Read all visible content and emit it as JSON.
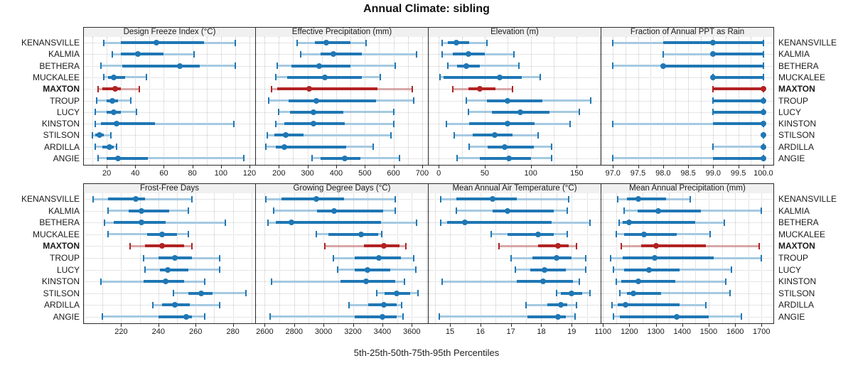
{
  "title": "Annual Climate: sibling",
  "caption": "5th-25th-50th-75th-95th Percentiles",
  "colors": {
    "normal": "#1f77b4",
    "normal_light": "#a5c9e1",
    "highlight": "#b22222",
    "highlight_light": "#d8a7a7",
    "header_bg": "#f0f0f0",
    "panel_border": "#2b2b2b",
    "grid": "#c8c8c8"
  },
  "chart_data": {
    "type": "dot-interval percentile trellis (5th-25th-50th-75th-95th)",
    "grid": "dotted minor+major verticals, dotted horizontal per category",
    "legend_position": "none (caption below)",
    "categories": [
      "KENANSVILLE",
      "KALMIA",
      "BETHERA",
      "MUCKALEE",
      "MAXTON",
      "TROUP",
      "LUCY",
      "KINSTON",
      "STILSON",
      "ARDILLA",
      "ANGIE"
    ],
    "highlight_category": "MAXTON",
    "percentiles": [
      "5th",
      "25th",
      "50th",
      "75th",
      "95th"
    ],
    "panels": [
      {
        "title": "Design Freeze Index (°C)",
        "xlim": [
          4,
          124
        ],
        "ticks": [
          20,
          40,
          60,
          80,
          100,
          120
        ],
        "tick_labels": [
          "20",
          "40",
          "60",
          "80",
          "100",
          "120"
        ],
        "values": [
          [
            18,
            30,
            55,
            88,
            110
          ],
          [
            24,
            30,
            42,
            60,
            81
          ],
          [
            16,
            31,
            71,
            85,
            110
          ],
          [
            18,
            21,
            25,
            33,
            48
          ],
          [
            14,
            17,
            26,
            30,
            43
          ],
          [
            13,
            20,
            24,
            28,
            37
          ],
          [
            12,
            20,
            25,
            30,
            41
          ],
          [
            12,
            16,
            27,
            54,
            109
          ],
          [
            10,
            12,
            15,
            18,
            23
          ],
          [
            12,
            17,
            22,
            25,
            27
          ],
          [
            14,
            20,
            28,
            49,
            116
          ]
        ]
      },
      {
        "title": "Effective Precipitation (mm)",
        "xlim": [
          120,
          720
        ],
        "ticks": [
          200,
          300,
          400,
          500,
          600,
          700
        ],
        "tick_labels": [
          "200",
          "300",
          "400",
          "500",
          "600",
          "700"
        ],
        "values": [
          [
            265,
            325,
            365,
            450,
            505
          ],
          [
            275,
            345,
            390,
            490,
            680
          ],
          [
            195,
            245,
            340,
            450,
            605
          ],
          [
            190,
            230,
            360,
            490,
            555
          ],
          [
            175,
            195,
            305,
            545,
            665
          ],
          [
            165,
            235,
            330,
            540,
            670
          ],
          [
            200,
            240,
            320,
            425,
            600
          ],
          [
            190,
            220,
            320,
            430,
            600
          ],
          [
            160,
            185,
            225,
            285,
            590
          ],
          [
            155,
            190,
            220,
            435,
            530
          ],
          [
            315,
            345,
            430,
            485,
            620
          ]
        ]
      },
      {
        "title": "Elevation (m)",
        "xlim": [
          -11,
          176
        ],
        "ticks": [
          0,
          50,
          100,
          150
        ],
        "tick_labels": [
          "0",
          "50",
          "100",
          "150"
        ],
        "values": [
          [
            4,
            10,
            19,
            33,
            52
          ],
          [
            4,
            15,
            32,
            50,
            82
          ],
          [
            10,
            20,
            30,
            45,
            87
          ],
          [
            1,
            5,
            66,
            90,
            110
          ],
          [
            15,
            32,
            45,
            62,
            80
          ],
          [
            30,
            52,
            75,
            113,
            165
          ],
          [
            32,
            58,
            89,
            120,
            153
          ],
          [
            8,
            33,
            75,
            104,
            143
          ],
          [
            17,
            37,
            61,
            80,
            108
          ],
          [
            33,
            53,
            72,
            103,
            123
          ],
          [
            20,
            45,
            76,
            100,
            123
          ]
        ]
      },
      {
        "title": "Fraction of Annual PPT as Rain",
        "xlim": [
          96.77,
          100.2
        ],
        "ticks": [
          97.0,
          97.5,
          98.0,
          98.5,
          99.0,
          99.5,
          100.0
        ],
        "tick_labels": [
          "97.0",
          "97.5",
          "98.0",
          "98.5",
          "99.0",
          "99.5",
          "100.0"
        ],
        "values": [
          [
            97,
            98,
            99,
            100,
            100
          ],
          [
            98,
            99,
            99,
            100,
            100
          ],
          [
            97,
            98,
            98,
            100,
            100
          ],
          [
            99,
            99,
            99,
            100,
            100
          ],
          [
            99,
            99,
            100,
            100,
            100
          ],
          [
            99,
            99,
            100,
            100,
            100
          ],
          [
            99,
            99,
            100,
            100,
            100
          ],
          [
            97,
            99,
            100,
            100,
            100
          ],
          [
            100,
            100,
            100,
            100,
            100
          ],
          [
            99,
            100,
            100,
            100,
            100
          ],
          [
            97,
            99,
            100,
            100,
            100
          ]
        ]
      },
      {
        "title": "Frost-Free Days",
        "xlim": [
          200,
          292
        ],
        "ticks": [
          220,
          240,
          260,
          280
        ],
        "tick_labels": [
          "220",
          "240",
          "260",
          "280"
        ],
        "values": [
          [
            205,
            213,
            228,
            233,
            258
          ],
          [
            213,
            224,
            231,
            246,
            256
          ],
          [
            211,
            216,
            231,
            244,
            276
          ],
          [
            213,
            234,
            242,
            250,
            256
          ],
          [
            225,
            233,
            242,
            254,
            258
          ],
          [
            232,
            240,
            249,
            258,
            273
          ],
          [
            233,
            241,
            245,
            256,
            273
          ],
          [
            209,
            232,
            244,
            254,
            265
          ],
          [
            248,
            256,
            263,
            269,
            287
          ],
          [
            237,
            242,
            249,
            257,
            273
          ],
          [
            210,
            240,
            255,
            258,
            265
          ]
        ]
      },
      {
        "title": "Growing Degree Days (°C)",
        "xlim": [
          2540,
          3710
        ],
        "ticks": [
          2600,
          2800,
          3000,
          3200,
          3400,
          3600
        ],
        "tick_labels": [
          "2600",
          "2800",
          "3000",
          "3200",
          "3400",
          "3600"
        ],
        "values": [
          [
            2610,
            2715,
            2950,
            3140,
            3490
          ],
          [
            2660,
            2955,
            3070,
            3405,
            3490
          ],
          [
            2620,
            2675,
            2780,
            3390,
            3635
          ],
          [
            2950,
            3035,
            3255,
            3370,
            3395
          ],
          [
            3010,
            3275,
            3410,
            3515,
            3560
          ],
          [
            3065,
            3210,
            3375,
            3525,
            3615
          ],
          [
            3095,
            3210,
            3300,
            3455,
            3630
          ],
          [
            2645,
            3115,
            3290,
            3490,
            3550
          ],
          [
            3360,
            3415,
            3495,
            3590,
            3640
          ],
          [
            3175,
            3305,
            3410,
            3495,
            3530
          ],
          [
            2635,
            3210,
            3400,
            3495,
            3540
          ]
        ]
      },
      {
        "title": "Mean Annual Air Temperature (°C)",
        "xlim": [
          14.3,
          19.95
        ],
        "ticks": [
          15,
          16,
          17,
          18,
          19
        ],
        "tick_labels": [
          "15",
          "16",
          "17",
          "18",
          "19"
        ],
        "values": [
          [
            14.7,
            15.2,
            16.4,
            17.2,
            18.9
          ],
          [
            15.2,
            16.4,
            16.9,
            18.4,
            18.85
          ],
          [
            14.7,
            14.9,
            15.5,
            18.35,
            19.6
          ],
          [
            16.35,
            16.9,
            17.9,
            18.4,
            18.85
          ],
          [
            16.6,
            17.9,
            18.55,
            18.9,
            19.15
          ],
          [
            17.0,
            17.7,
            18.5,
            19.0,
            19.45
          ],
          [
            17.15,
            17.65,
            18.1,
            18.8,
            19.45
          ],
          [
            14.75,
            17.2,
            18.05,
            19.05,
            19.25
          ],
          [
            18.5,
            18.65,
            19.0,
            19.35,
            19.6
          ],
          [
            17.5,
            18.2,
            18.65,
            18.85,
            19.15
          ],
          [
            14.65,
            17.55,
            18.55,
            18.8,
            19.1
          ]
        ]
      },
      {
        "title": "Mean Annual Precipitation (mm)",
        "xlim": [
          1094,
          1745
        ],
        "ticks": [
          1100,
          1200,
          1300,
          1400,
          1500,
          1600,
          1700
        ],
        "tick_labels": [
          "1100",
          "1200",
          "1300",
          "1400",
          "1500",
          "1600",
          "1700"
        ],
        "values": [
          [
            1155,
            1190,
            1235,
            1340,
            1430
          ],
          [
            1180,
            1230,
            1310,
            1470,
            1700
          ],
          [
            1160,
            1175,
            1200,
            1450,
            1560
          ],
          [
            1150,
            1180,
            1255,
            1380,
            1505
          ],
          [
            1170,
            1245,
            1300,
            1490,
            1690
          ],
          [
            1130,
            1175,
            1295,
            1520,
            1700
          ],
          [
            1140,
            1180,
            1275,
            1390,
            1585
          ],
          [
            1150,
            1170,
            1235,
            1375,
            1565
          ],
          [
            1165,
            1190,
            1215,
            1320,
            1580
          ],
          [
            1135,
            1155,
            1185,
            1390,
            1490
          ],
          [
            1140,
            1165,
            1380,
            1500,
            1625
          ]
        ]
      }
    ]
  }
}
